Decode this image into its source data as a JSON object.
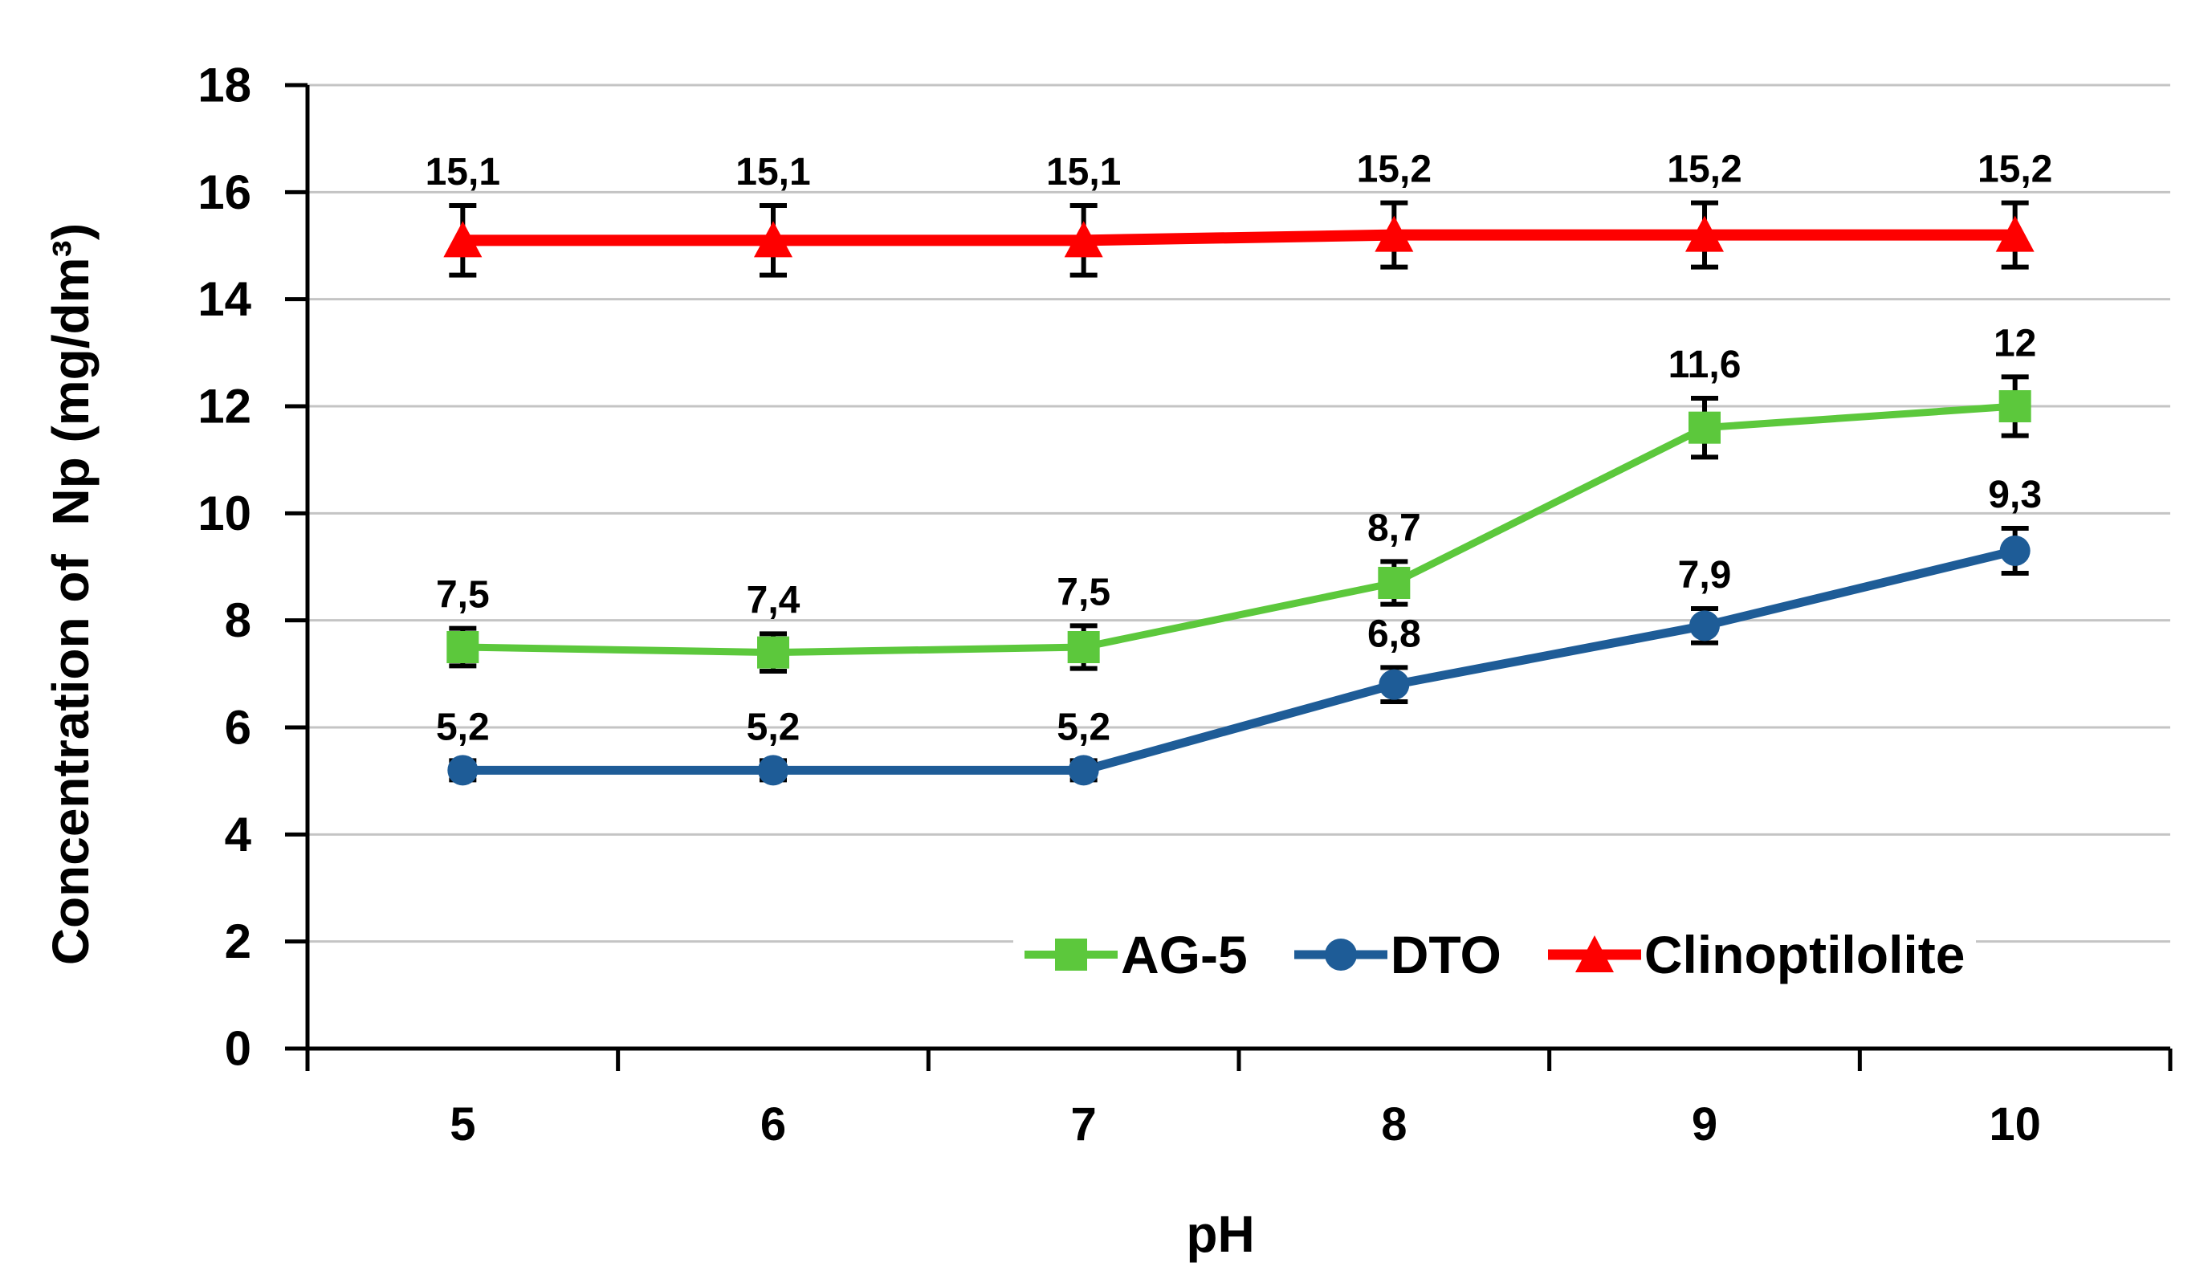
{
  "chart_data": {
    "type": "line",
    "title": "",
    "xlabel": "pH",
    "ylabel": "Concentration of  Np (mg/dm³)",
    "x_categories": [
      "5",
      "6",
      "7",
      "8",
      "9",
      "10"
    ],
    "ylim": [
      0,
      18
    ],
    "ytick_step": 2,
    "ytick_labels": [
      "0",
      "2",
      "4",
      "6",
      "8",
      "10",
      "12",
      "14",
      "16",
      "18"
    ],
    "grid": true,
    "gridline_color": "#C4C4C4",
    "axis_color": "#000000",
    "error_bar_color": "#000000",
    "decimal_separator": ",",
    "legend_position": "inside-bottom-right",
    "series": [
      {
        "name": "AG-5",
        "color": "#5CC83C",
        "marker": "square",
        "values": [
          7.5,
          7.4,
          7.5,
          8.7,
          11.6,
          12
        ],
        "labels": [
          "7,5",
          "7,4",
          "7,5",
          "8,7",
          "11,6",
          "12"
        ],
        "errors": [
          0.35,
          0.35,
          0.4,
          0.4,
          0.55,
          0.55
        ]
      },
      {
        "name": "DTO",
        "color": "#1E5C97",
        "marker": "circle",
        "values": [
          5.2,
          5.2,
          5.2,
          6.8,
          7.9,
          9.3
        ],
        "labels": [
          "5,2",
          "5,2",
          "5,2",
          "6,8",
          "7,9",
          "9,3"
        ],
        "errors": [
          0.18,
          0.18,
          0.18,
          0.32,
          0.32,
          0.42
        ]
      },
      {
        "name": "Clinoptilolite",
        "color": "#FE0000",
        "marker": "triangle",
        "values": [
          15.1,
          15.1,
          15.1,
          15.2,
          15.2,
          15.2
        ],
        "labels": [
          "15,1",
          "15,1",
          "15,1",
          "15,2",
          "15,2",
          "15,2"
        ],
        "errors": [
          0.65,
          0.65,
          0.65,
          0.6,
          0.6,
          0.6
        ]
      }
    ]
  }
}
